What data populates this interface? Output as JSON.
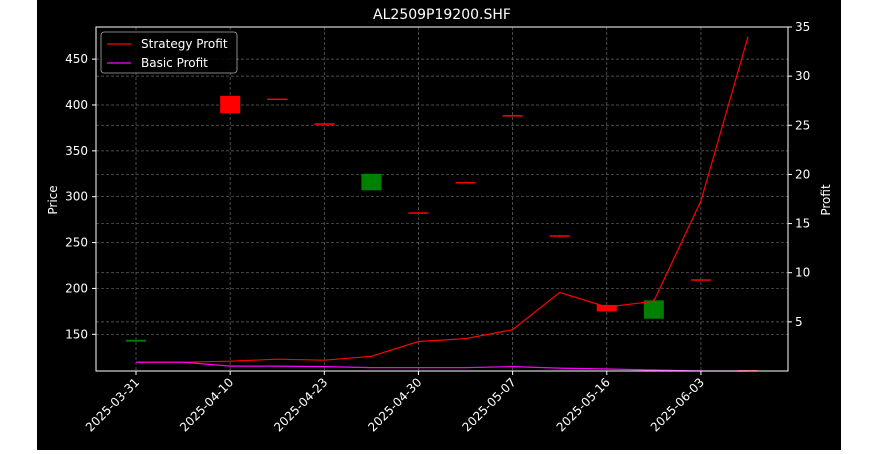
{
  "chart_data": {
    "type": "candlestick+line",
    "title": "AL2509P19200.SHF",
    "ylabel_left": "Price",
    "ylabel_right": "Profit",
    "ylim_left": [
      110,
      485
    ],
    "ylim_right": [
      0,
      35
    ],
    "left_ticks": [
      150,
      200,
      250,
      300,
      350,
      400,
      450
    ],
    "right_ticks": [
      5,
      10,
      15,
      20,
      25,
      30,
      35
    ],
    "x_ticks": [
      "2025-03-31",
      "2025-04-10",
      "2025-04-23",
      "2025-04-30",
      "2025-05-07",
      "2025-05-16",
      "2025-06-03"
    ],
    "grid": true,
    "legend_position": "top-left",
    "background": "#000000",
    "colors": {
      "up": "#008000",
      "down": "#ff0000",
      "strategy": "#ff0000",
      "basic": "#ff00ff",
      "axes": "#ffffff",
      "grid": "#808080"
    },
    "candles": [
      {
        "x": 0,
        "open": 142,
        "close": 144,
        "high": 144,
        "low": 142
      },
      {
        "x": 2,
        "open": 410,
        "close": 391,
        "high": 410,
        "low": 391
      },
      {
        "x": 3,
        "open": 407,
        "close": 406,
        "high": 407,
        "low": 406
      },
      {
        "x": 4,
        "open": 380,
        "close": 379,
        "high": 380,
        "low": 379
      },
      {
        "x": 5,
        "open": 307,
        "close": 325,
        "high": 325,
        "low": 307
      },
      {
        "x": 6,
        "open": 283,
        "close": 282,
        "high": 283,
        "low": 282
      },
      {
        "x": 7,
        "open": 316,
        "close": 315,
        "high": 316,
        "low": 315
      },
      {
        "x": 8,
        "open": 389,
        "close": 388,
        "high": 389,
        "low": 388
      },
      {
        "x": 9,
        "open": 258,
        "close": 257,
        "high": 258,
        "low": 256
      },
      {
        "x": 10,
        "open": 182,
        "close": 175,
        "high": 182,
        "low": 175
      },
      {
        "x": 11,
        "open": 167,
        "close": 187,
        "high": 189,
        "low": 167
      },
      {
        "x": 12,
        "open": 210,
        "close": 209,
        "high": 210,
        "low": 209
      },
      {
        "x": 13,
        "open": 111,
        "close": 110,
        "high": 111,
        "low": 110
      }
    ],
    "series": [
      {
        "name": "Strategy Profit",
        "x": [
          0,
          1,
          2,
          3,
          4,
          5,
          6,
          7,
          8,
          9,
          10,
          11,
          12,
          13
        ],
        "values": [
          0.9,
          0.9,
          1.0,
          1.2,
          1.1,
          1.5,
          3.0,
          3.3,
          4.2,
          8.0,
          6.5,
          7.1,
          17.3,
          34.0
        ]
      },
      {
        "name": "Basic Profit",
        "x": [
          0,
          1,
          2,
          3,
          4,
          5,
          6,
          7,
          8,
          9,
          10,
          11,
          12,
          13
        ],
        "values": [
          0.9,
          0.9,
          0.5,
          0.5,
          0.45,
          0.35,
          0.35,
          0.35,
          0.45,
          0.3,
          0.2,
          0.1,
          0.0,
          0.0
        ]
      }
    ]
  }
}
